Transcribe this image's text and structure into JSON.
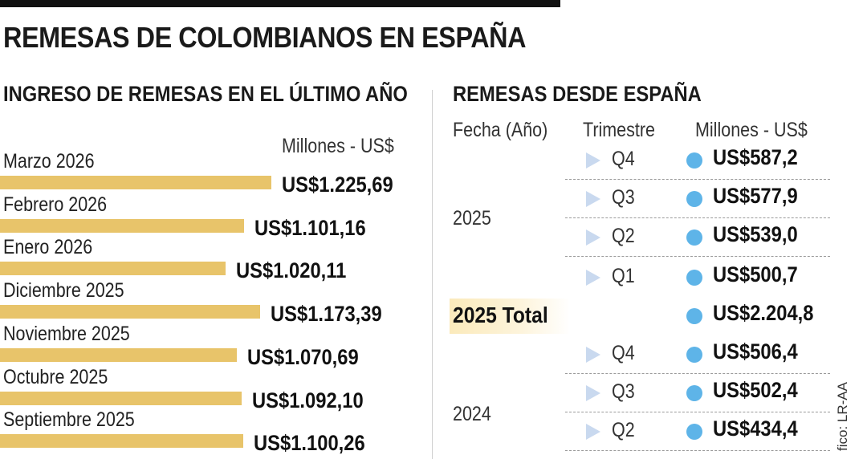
{
  "title": "REMESAS DE COLOMBIANOS EN ESPAÑA",
  "credit": "fico: LR-AA",
  "colors": {
    "bar": "#e8c46a",
    "dot": "#5eb4e8",
    "triangle": "#c9d9ef",
    "total_highlight": "#fbeabb"
  },
  "chart_data": [
    {
      "type": "bar",
      "orientation": "horizontal",
      "title": "INGRESO DE REMESAS EN EL ÚLTIMO AÑO",
      "unit_label": "Millones - US$",
      "categories": [
        "Marzo 2026",
        "Febrero 2026",
        "Enero 2026",
        "Diciembre 2025",
        "Noviembre 2025",
        "Octubre 2025",
        "Septiembre 2025"
      ],
      "values": [
        1225.69,
        1101.16,
        1020.11,
        1173.39,
        1070.69,
        1092.1,
        1100.26
      ],
      "value_labels": [
        "US$1.225,69",
        "US$1.101,16",
        "US$1.020,11",
        "US$1.173,39",
        "US$1.070,69",
        "US$1.092,10",
        "US$1.100,26"
      ],
      "xlim": [
        0,
        1225.69
      ]
    },
    {
      "type": "table",
      "title": "REMESAS DESDE ESPAÑA",
      "headers": [
        "Fecha (Año)",
        "Trimestre",
        "Millones - US$"
      ],
      "groups": [
        {
          "year": "2025",
          "rows": [
            {
              "quarter": "Q4",
              "value": "US$587,2"
            },
            {
              "quarter": "Q3",
              "value": "US$577,9"
            },
            {
              "quarter": "Q2",
              "value": "US$539,0"
            },
            {
              "quarter": "Q1",
              "value": "US$500,7"
            }
          ],
          "total_label": "2025 Total",
          "total_value": "US$2.204,8"
        },
        {
          "year": "2024",
          "rows": [
            {
              "quarter": "Q4",
              "value": "US$506,4"
            },
            {
              "quarter": "Q3",
              "value": "US$502,4"
            },
            {
              "quarter": "Q2",
              "value": "US$434,4"
            }
          ]
        }
      ]
    }
  ]
}
